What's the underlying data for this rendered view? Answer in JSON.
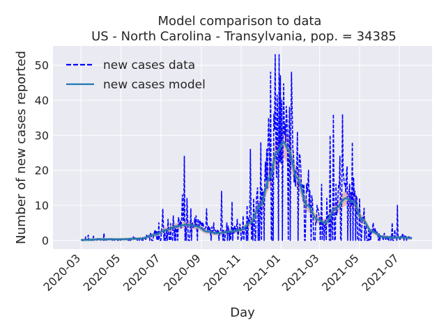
{
  "chart_data": {
    "type": "line",
    "title": "Model comparison to data",
    "subtitle": "US - North Carolina - Transylvania, pop. = 34385",
    "xlabel": "Day",
    "ylabel": "Number of new cases reported",
    "xlim": [
      "2020-01-18",
      "2021-08-20"
    ],
    "ylim": [
      -2.5,
      55.5
    ],
    "xticks": [
      "2020-03",
      "2020-05",
      "2020-07",
      "2020-09",
      "2020-11",
      "2021-01",
      "2021-03",
      "2021-05",
      "2021-07"
    ],
    "yticks": [
      0,
      10,
      20,
      30,
      40,
      50
    ],
    "grid": true,
    "legend_position": "top-left",
    "legend": [
      "new cases data",
      "new cases model"
    ],
    "colors": {
      "data": "#0000ff",
      "model": "#1f77b4",
      "band": "#cd5c5c",
      "plot_bg": "#eaeaf2",
      "grid": "#ffffff"
    },
    "model_keyframes": [
      [
        "2020-03-01",
        0.1
      ],
      [
        "2020-04-01",
        0.3
      ],
      [
        "2020-05-01",
        0.3
      ],
      [
        "2020-06-01",
        0.5
      ],
      [
        "2020-06-20",
        1.5
      ],
      [
        "2020-07-10",
        3.0
      ],
      [
        "2020-07-25",
        4.0
      ],
      [
        "2020-08-10",
        4.5
      ],
      [
        "2020-08-25",
        4.0
      ],
      [
        "2020-09-10",
        2.5
      ],
      [
        "2020-09-25",
        2.0
      ],
      [
        "2020-10-15",
        2.5
      ],
      [
        "2020-11-01",
        3.0
      ],
      [
        "2020-11-15",
        5.0
      ],
      [
        "2020-11-30",
        10.0
      ],
      [
        "2020-12-15",
        18.0
      ],
      [
        "2020-12-25",
        25.0
      ],
      [
        "2021-01-05",
        28.0
      ],
      [
        "2021-01-12",
        26.0
      ],
      [
        "2021-01-25",
        18.0
      ],
      [
        "2021-02-10",
        10.0
      ],
      [
        "2021-02-25",
        6.0
      ],
      [
        "2021-03-10",
        5.0
      ],
      [
        "2021-03-25",
        9.0
      ],
      [
        "2021-04-10",
        12.0
      ],
      [
        "2021-04-22",
        11.0
      ],
      [
        "2021-05-05",
        6.0
      ],
      [
        "2021-05-20",
        2.5
      ],
      [
        "2021-06-05",
        1.0
      ],
      [
        "2021-06-20",
        0.8
      ],
      [
        "2021-07-05",
        0.8
      ],
      [
        "2021-07-20",
        0.6
      ]
    ],
    "data_spikes": [
      [
        "2020-03-08",
        1.0
      ],
      [
        "2020-03-12",
        1.5
      ],
      [
        "2020-03-20",
        1.2
      ],
      [
        "2020-04-05",
        2.0
      ],
      [
        "2020-05-20",
        1.0
      ],
      [
        "2020-06-22",
        3.0
      ],
      [
        "2020-06-28",
        5.0
      ],
      [
        "2020-07-04",
        9.0
      ],
      [
        "2020-07-12",
        6.0
      ],
      [
        "2020-07-20",
        7.0
      ],
      [
        "2020-07-28",
        6.5
      ],
      [
        "2020-08-03",
        13.0
      ],
      [
        "2020-08-06",
        24.0
      ],
      [
        "2020-08-10",
        12.0
      ],
      [
        "2020-08-16",
        9.0
      ],
      [
        "2020-08-24",
        7.0
      ],
      [
        "2020-09-01",
        5.0
      ],
      [
        "2020-09-09",
        9.0
      ],
      [
        "2020-09-20",
        5.0
      ],
      [
        "2020-10-02",
        14.0
      ],
      [
        "2020-10-10",
        5.0
      ],
      [
        "2020-10-18",
        11.0
      ],
      [
        "2020-10-26",
        6.0
      ],
      [
        "2020-11-04",
        7.0
      ],
      [
        "2020-11-10",
        10.0
      ],
      [
        "2020-11-15",
        26.0
      ],
      [
        "2020-11-20",
        12.0
      ],
      [
        "2020-11-26",
        15.0
      ],
      [
        "2020-12-01",
        28.0
      ],
      [
        "2020-12-05",
        14.0
      ],
      [
        "2020-12-09",
        17.0
      ],
      [
        "2020-12-13",
        35.0
      ],
      [
        "2020-12-16",
        48.0
      ],
      [
        "2020-12-19",
        22.0
      ],
      [
        "2020-12-21",
        36.0
      ],
      [
        "2020-12-23",
        53.0
      ],
      [
        "2020-12-25",
        18.0
      ],
      [
        "2020-12-27",
        34.0
      ],
      [
        "2020-12-29",
        53.0
      ],
      [
        "2020-12-31",
        47.0
      ],
      [
        "2021-01-02",
        40.0
      ],
      [
        "2021-01-04",
        32.0
      ],
      [
        "2021-01-06",
        30.0
      ],
      [
        "2021-01-08",
        28.0
      ],
      [
        "2021-01-11",
        24.0
      ],
      [
        "2021-01-14",
        38.0
      ],
      [
        "2021-01-17",
        48.0
      ],
      [
        "2021-01-19",
        26.0
      ],
      [
        "2021-01-22",
        20.0
      ],
      [
        "2021-01-26",
        31.0
      ],
      [
        "2021-01-30",
        24.0
      ],
      [
        "2021-02-05",
        16.0
      ],
      [
        "2021-02-12",
        20.0
      ],
      [
        "2021-02-18",
        11.0
      ],
      [
        "2021-02-26",
        9.0
      ],
      [
        "2021-03-04",
        16.0
      ],
      [
        "2021-03-12",
        12.0
      ],
      [
        "2021-03-17",
        30.0
      ],
      [
        "2021-03-22",
        36.0
      ],
      [
        "2021-03-26",
        16.0
      ],
      [
        "2021-04-01",
        24.0
      ],
      [
        "2021-04-05",
        36.0
      ],
      [
        "2021-04-08",
        16.0
      ],
      [
        "2021-04-12",
        21.0
      ],
      [
        "2021-04-16",
        16.0
      ],
      [
        "2021-04-20",
        28.0
      ],
      [
        "2021-04-24",
        14.0
      ],
      [
        "2021-05-01",
        12.0
      ],
      [
        "2021-05-10",
        4.0
      ],
      [
        "2021-05-22",
        5.0
      ],
      [
        "2021-06-08",
        2.0
      ],
      [
        "2021-06-20",
        5.0
      ],
      [
        "2021-06-24",
        3.0
      ],
      [
        "2021-06-28",
        10.0
      ],
      [
        "2021-07-06",
        2.0
      ]
    ]
  }
}
